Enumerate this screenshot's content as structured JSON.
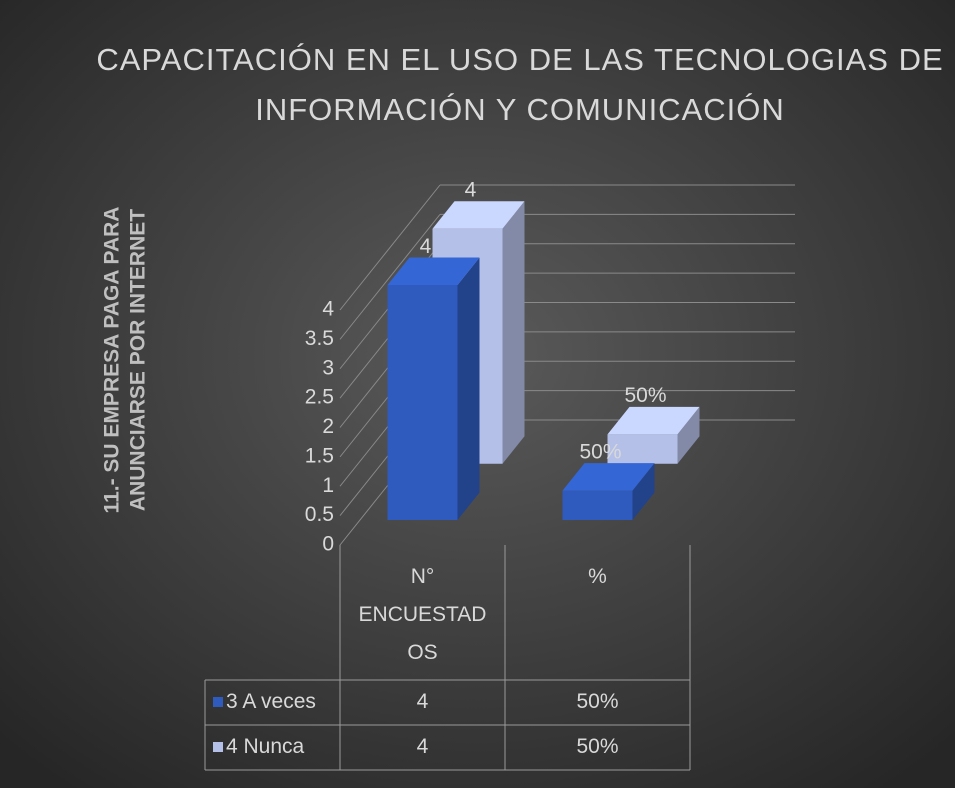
{
  "chart_data": {
    "type": "bar3d",
    "title": [
      "CAPACITACIÓN EN EL USO DE LAS TECNOLOGIAS DE",
      "INFORMACIÓN Y COMUNICACIÓN"
    ],
    "y_label": [
      "11.- SU EMPRESA PAGA PARA",
      "ANUNCIARSE POR INTERNET"
    ],
    "categories": [
      "N° ENCUESTADOS",
      "%"
    ],
    "series": [
      {
        "name": "3 A veces",
        "color": "#2f5bbf",
        "values": [
          4,
          0.5
        ],
        "value_labels": [
          "4",
          "50%"
        ]
      },
      {
        "name": "4 Nunca",
        "color": "#b4c0e8",
        "values": [
          4,
          0.5
        ],
        "value_labels": [
          "4",
          "50%"
        ]
      }
    ],
    "ylim": [
      0,
      4
    ],
    "yticks": [
      0,
      0.5,
      1,
      1.5,
      2,
      2.5,
      3,
      3.5,
      4
    ],
    "grid": true,
    "legend": "table"
  }
}
